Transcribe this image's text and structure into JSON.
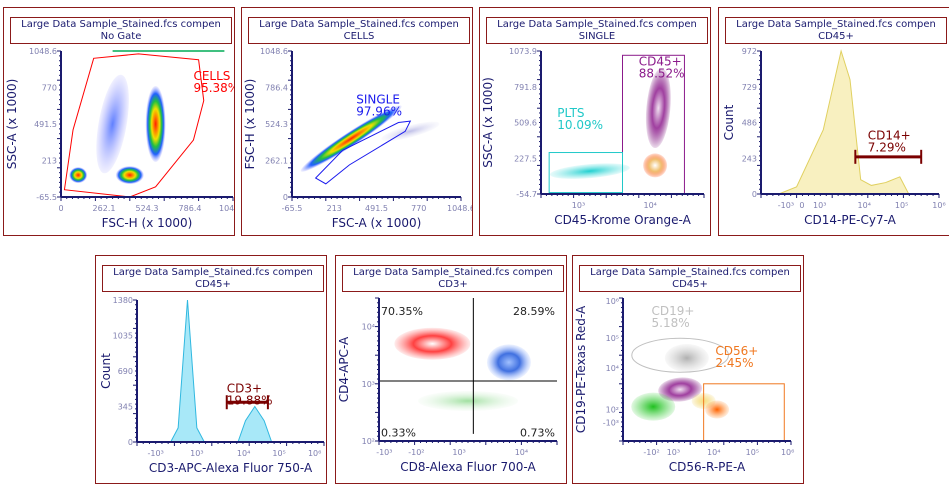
{
  "colors": {
    "panel_border": "#8b1a1a",
    "axis": "#1a1a6e",
    "tick_label": "#8080b0"
  },
  "chart_data": [
    {
      "type": "scatter",
      "title": "Large Data Sample_Stained.fcs compen",
      "subtitle": "No Gate",
      "xlabel": "FSC-H (x 1000)",
      "ylabel": "SSC-A (x 1000)",
      "xticks": [
        "0",
        "262.1",
        "524.3",
        "786.4",
        "1048.6"
      ],
      "yticks": [
        "1048.6",
        "770",
        "491.5",
        "213",
        "-65.5"
      ],
      "gates": [
        {
          "name": "CELLS",
          "pct": "95.38%",
          "color": "#ff0000",
          "shape": "polygon"
        }
      ]
    },
    {
      "type": "scatter",
      "title": "Large Data Sample_Stained.fcs compen",
      "subtitle": "CELLS",
      "xlabel": "FSC-A (x 1000)",
      "ylabel": "FSC-H (x 1000)",
      "xticks": [
        "-65.5",
        "213",
        "491.5",
        "770",
        "1048.6"
      ],
      "yticks": [
        "1048.6",
        "786.4",
        "524.3",
        "262.1",
        "0"
      ],
      "gates": [
        {
          "name": "SINGLE",
          "pct": "97.96%",
          "color": "#1a1aee",
          "shape": "polygon"
        }
      ]
    },
    {
      "type": "scatter",
      "title": "Large Data Sample_Stained.fcs compen",
      "subtitle": "SINGLE",
      "xlabel": "CD45-Krome Orange-A",
      "ylabel": "SSC-A (x 1000)",
      "xticks": [
        "10³",
        "10⁴"
      ],
      "yticks": [
        "1073.9",
        "791.8",
        "509.6",
        "227.5",
        "-54.7"
      ],
      "gates": [
        {
          "name": "CD45+",
          "pct": "88.52%",
          "color": "#8b1a8b",
          "shape": "rectangle"
        },
        {
          "name": "PLTS",
          "pct": "10.09%",
          "color": "#20c8c8",
          "shape": "rectangle"
        }
      ]
    },
    {
      "type": "area",
      "title": "Large Data Sample_Stained.fcs compen",
      "subtitle": "CD45+",
      "xlabel": "CD14-PE-Cy7-A",
      "ylabel": "Count",
      "xticks": [
        "-10³",
        "0",
        "10³",
        "10⁴",
        "10⁵",
        "10⁶"
      ],
      "yticks": [
        "972",
        "729",
        "486",
        "243",
        "0"
      ],
      "ylim": [
        0,
        972
      ],
      "fill": "#f8f0c0",
      "line": "#e0d060",
      "gates": [
        {
          "name": "CD14+",
          "pct": "7.29%",
          "color": "#7a0000",
          "shape": "range"
        }
      ]
    },
    {
      "type": "area",
      "title": "Large Data Sample_Stained.fcs compen",
      "subtitle": "CD45+",
      "xlabel": "CD3-APC-Alexa Fluor 750-A",
      "ylabel": "Count",
      "xticks": [
        "-10³",
        "10³",
        "10⁴",
        "10⁵",
        "10⁶"
      ],
      "yticks": [
        "1380",
        "1035",
        "690",
        "345",
        "0"
      ],
      "ylim": [
        0,
        1380
      ],
      "fill": "#a8e8f8",
      "line": "#30b8e0",
      "gates": [
        {
          "name": "CD3+",
          "pct": "19.88%",
          "color": "#7a0000",
          "shape": "range"
        }
      ]
    },
    {
      "type": "scatter",
      "title": "Large Data Sample_Stained.fcs compen",
      "subtitle": "CD3+",
      "xlabel": "CD8-Alexa Fluor 700-A",
      "ylabel": "CD4-APC-A",
      "xticks": [
        "-10³",
        "-10²",
        "10³",
        "10⁴"
      ],
      "yticks": [
        "10⁴",
        "10³",
        "10²"
      ],
      "quadrants": [
        "70.35%",
        "28.59%",
        "0.33%",
        "0.73%"
      ]
    },
    {
      "type": "scatter",
      "title": "Large Data Sample_Stained.fcs compen",
      "subtitle": "CD45+",
      "xlabel": "CD56-R-PE-A",
      "ylabel": "CD19-PE-Texas Red-A",
      "xticks": [
        "-10²",
        "10³",
        "10⁴",
        "10⁵",
        "10⁶"
      ],
      "yticks": [
        "10⁶",
        "10⁵",
        "10⁴",
        "10²",
        "-10³"
      ],
      "gates": [
        {
          "name": "CD19+",
          "pct": "5.18%",
          "color": "#c0c0c0",
          "shape": "ellipse"
        },
        {
          "name": "CD56+",
          "pct": "2.45%",
          "color": "#f07820",
          "shape": "rectangle"
        }
      ]
    }
  ]
}
